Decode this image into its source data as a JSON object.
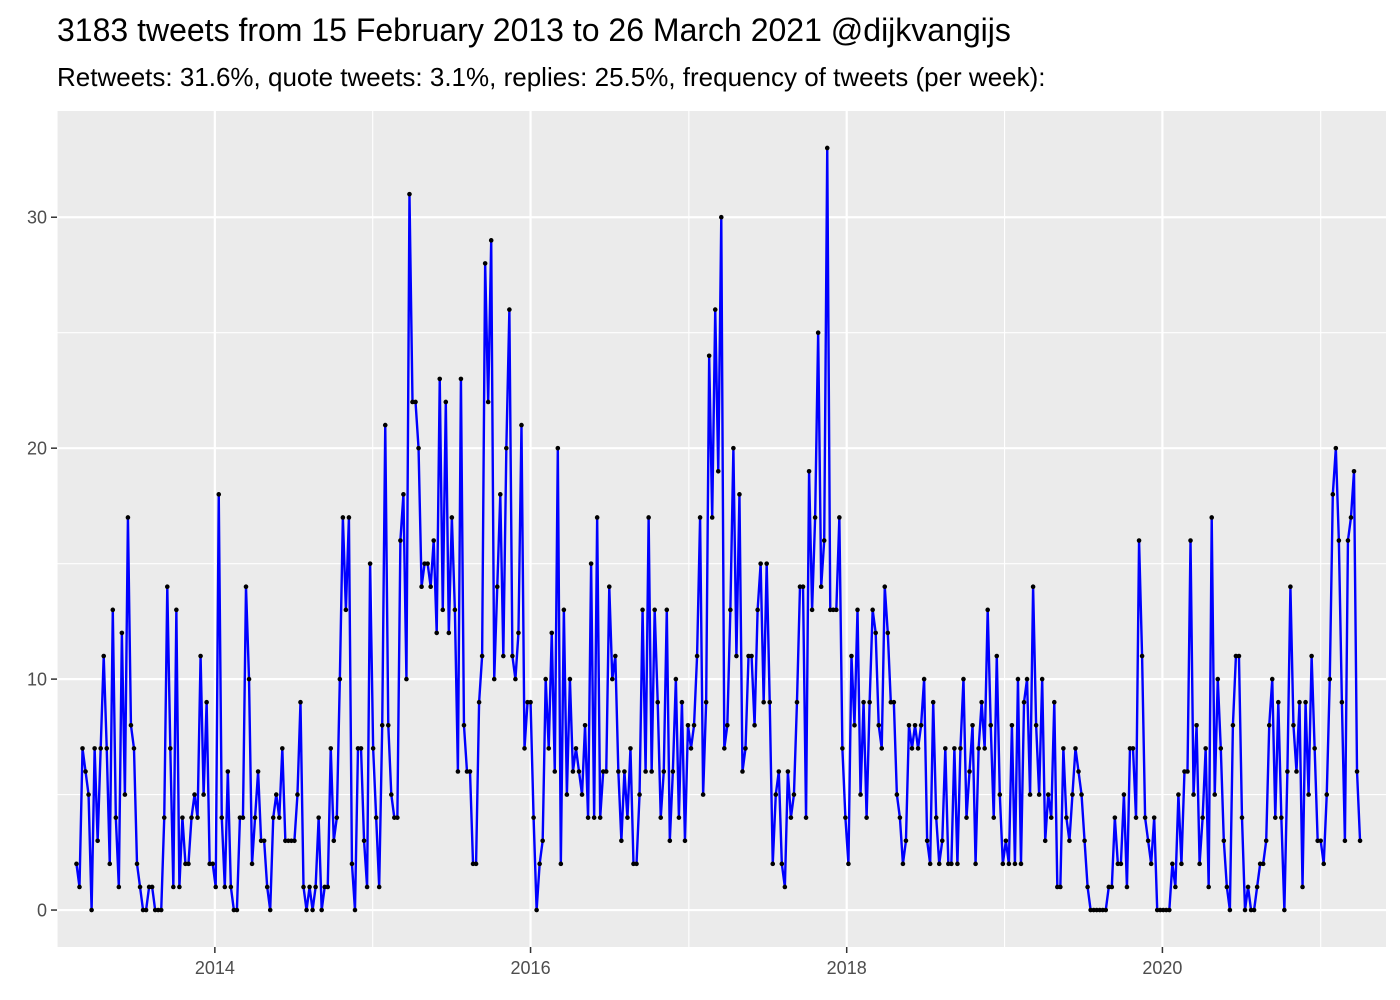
{
  "chart_data": {
    "type": "line",
    "title": "3183 tweets from 15 February 2013 to 26 March 2021 @dijkvangijs",
    "subtitle": "Retweets: 31.6%, quote tweets: 3.1%, replies: 25.5%, frequency of tweets (per week):",
    "xlabel": "",
    "ylabel": "",
    "x_ticks": [
      "2014",
      "2016",
      "2018",
      "2020"
    ],
    "y_ticks": [
      "0",
      "10",
      "20",
      "30"
    ],
    "xlim": [
      "2013-01-01",
      "2021-06-01"
    ],
    "ylim": [
      -1.6,
      34.6
    ],
    "grid": true,
    "line_color": "#0000ff",
    "point_color": "#000000",
    "panel_color": "#ebebeb",
    "series": [
      {
        "start": "2013-02-15",
        "interval_days": 7,
        "values": [
          2,
          1,
          7,
          6,
          5,
          0,
          7,
          3,
          7,
          11,
          7,
          2,
          13,
          4,
          1,
          12,
          5,
          17,
          8,
          7,
          2,
          1,
          0,
          0,
          1,
          1,
          0,
          0,
          0,
          4,
          14,
          7,
          1,
          13,
          1,
          4,
          2,
          2,
          4,
          5,
          4,
          11,
          5,
          9,
          2,
          2,
          1,
          18,
          4,
          1,
          6,
          1,
          0,
          0,
          4,
          4,
          14,
          10,
          2,
          4,
          6,
          3,
          3,
          1,
          0,
          4,
          5,
          4,
          7,
          3,
          3,
          3,
          3,
          5,
          9,
          1,
          0,
          1,
          0,
          1,
          4,
          0,
          1,
          1,
          7,
          3,
          4,
          10,
          17,
          13,
          17,
          2,
          0,
          7,
          7,
          3,
          1,
          15,
          7,
          4,
          1,
          8,
          21,
          8,
          5,
          4,
          4,
          16,
          18,
          10,
          31,
          22,
          22,
          20,
          14,
          15,
          15,
          14,
          16,
          12,
          23,
          13,
          22,
          12,
          17,
          13,
          6,
          23,
          8,
          6,
          6,
          2,
          2,
          9,
          11,
          28,
          22,
          29,
          10,
          14,
          18,
          11,
          20,
          26,
          11,
          10,
          12,
          21,
          7,
          9,
          9,
          4,
          0,
          2,
          3,
          10,
          7,
          12,
          6,
          20,
          2,
          13,
          5,
          10,
          6,
          7,
          6,
          5,
          8,
          4,
          15,
          4,
          17,
          4,
          6,
          6,
          14,
          10,
          11,
          6,
          3,
          6,
          4,
          7,
          2,
          2,
          5,
          13,
          6,
          17,
          6,
          13,
          9,
          4,
          6,
          13,
          3,
          6,
          10,
          4,
          9,
          3,
          8,
          7,
          8,
          11,
          17,
          5,
          9,
          24,
          17,
          26,
          19,
          30,
          7,
          8,
          13,
          20,
          11,
          18,
          6,
          7,
          11,
          11,
          8,
          13,
          15,
          9,
          15,
          9,
          2,
          5,
          6,
          2,
          1,
          6,
          4,
          5,
          9,
          14,
          14,
          4,
          19,
          13,
          17,
          25,
          14,
          16,
          33,
          13,
          13,
          13,
          17,
          7,
          4,
          2,
          11,
          8,
          13,
          5,
          9,
          4,
          9,
          13,
          12,
          8,
          7,
          14,
          12,
          9,
          9,
          5,
          4,
          2,
          3,
          8,
          7,
          8,
          7,
          8,
          10,
          3,
          2,
          9,
          4,
          2,
          3,
          7,
          2,
          2,
          7,
          2,
          7,
          10,
          4,
          6,
          8,
          2,
          7,
          9,
          7,
          13,
          8,
          4,
          11,
          5,
          2,
          3,
          2,
          8,
          2,
          10,
          2,
          9,
          10,
          5,
          14,
          8,
          5,
          10,
          3,
          5,
          4,
          9,
          1,
          1,
          7,
          4,
          3,
          5,
          7,
          6,
          5,
          3,
          1,
          0,
          0,
          0,
          0,
          0,
          0,
          1,
          1,
          4,
          2,
          2,
          5,
          1,
          7,
          7,
          4,
          16,
          11,
          4,
          3,
          2,
          4,
          0,
          0,
          0,
          0,
          0,
          2,
          1,
          5,
          2,
          6,
          6,
          16,
          5,
          8,
          2,
          4,
          7,
          1,
          17,
          5,
          10,
          7,
          3,
          1,
          0,
          8,
          11,
          11,
          4,
          0,
          1,
          0,
          0,
          1,
          2,
          2,
          3,
          8,
          10,
          4,
          9,
          4,
          0,
          6,
          14,
          8,
          6,
          9,
          1,
          9,
          5,
          11,
          7,
          3,
          3,
          2,
          5,
          10,
          18,
          20,
          16,
          9,
          3,
          16,
          17,
          19,
          6,
          3
        ]
      }
    ]
  }
}
